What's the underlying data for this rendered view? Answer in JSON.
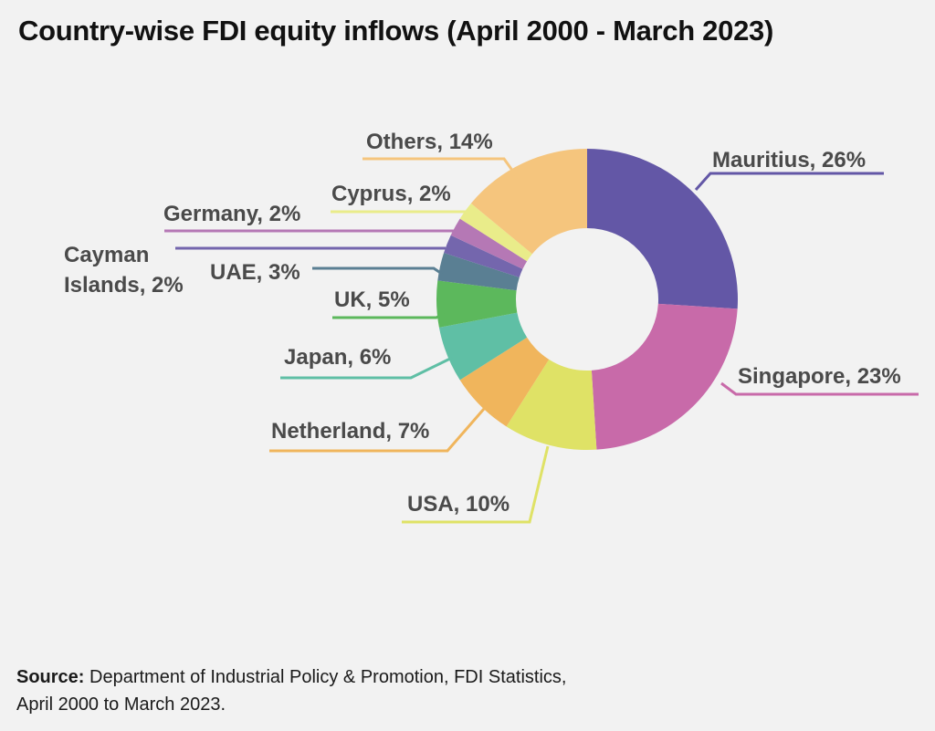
{
  "title": "Country-wise FDI equity inflows (April 2000 - March 2023)",
  "source": {
    "label": "Source:",
    "line1": "Department of Industrial Policy & Promotion, FDI Statistics,",
    "line2": "April 2000 to March 2023."
  },
  "chart_data": {
    "type": "pie",
    "donut": true,
    "title": "Country-wise FDI equity inflows (April 2000 - March 2023)",
    "unit": "%",
    "slices": [
      {
        "name": "Mauritius",
        "label": "Mauritius, 26%",
        "value": 26,
        "color": "#6357a6"
      },
      {
        "name": "Singapore",
        "label": "Singapore, 23%",
        "value": 23,
        "color": "#c86aa9"
      },
      {
        "name": "USA",
        "label": "USA, 10%",
        "value": 10,
        "color": "#dfe266"
      },
      {
        "name": "Netherland",
        "label": "Netherland, 7%",
        "value": 7,
        "color": "#f0b55c"
      },
      {
        "name": "Japan",
        "label": "Japan, 6%",
        "value": 6,
        "color": "#5fbfa5"
      },
      {
        "name": "UK",
        "label": "UK, 5%",
        "value": 5,
        "color": "#5cb85c"
      },
      {
        "name": "UAE",
        "label": "UAE, 3%",
        "value": 3,
        "color": "#5a7f93"
      },
      {
        "name": "Cayman Islands",
        "label": "Cayman Islands, 2%",
        "label_lines": [
          "Cayman",
          "Islands, 2%"
        ],
        "value": 2,
        "color": "#7466ad"
      },
      {
        "name": "Germany",
        "label": "Germany, 2%",
        "value": 2,
        "color": "#b578b5"
      },
      {
        "name": "Cyprus",
        "label": "Cyprus, 2%",
        "value": 2,
        "color": "#e9ec8a"
      },
      {
        "name": "Others",
        "label": "Others, 14%",
        "value": 14,
        "color": "#f5c57d"
      }
    ]
  }
}
